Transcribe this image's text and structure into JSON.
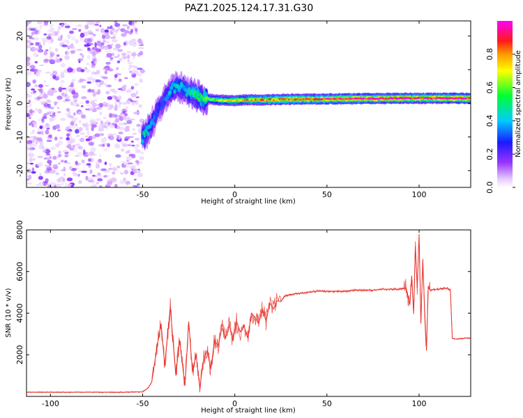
{
  "chart_data": [
    {
      "type": "heatmap",
      "title": "PAZ1.2025.124.17.31.G30",
      "xlabel": "Height of straight line (km)",
      "ylabel": "Frequency (Hz)",
      "xlim": [
        -113,
        128
      ],
      "ylim": [
        -25,
        24.5
      ],
      "xticks": [
        -100,
        -50,
        0,
        50,
        100
      ],
      "yticks": [
        -20,
        -10,
        0,
        10,
        20
      ],
      "colorbar": {
        "label": "Normalized spectral amplitude",
        "range": [
          0,
          1
        ],
        "ticks": [
          "0.0",
          "0.2",
          "0.4",
          "0.6",
          "0.8"
        ],
        "tick_values": [
          0.0,
          0.2,
          0.4,
          0.6,
          0.8
        ],
        "colormap": "rainbow (white → violet → blue → cyan → green → yellow → red → magenta)"
      },
      "noise_region": {
        "x": [
          -113,
          -50
        ],
        "frequency": [
          -25,
          24.5
        ],
        "amplitude": [
          0.0,
          0.25
        ]
      },
      "ridge": [
        {
          "x": -50,
          "f": -10.5,
          "a": 0.45
        },
        {
          "x": -47,
          "f": -8,
          "a": 0.4
        },
        {
          "x": -44,
          "f": -5,
          "a": 0.35
        },
        {
          "x": -41,
          "f": -1,
          "a": 0.3
        },
        {
          "x": -38,
          "f": 1,
          "a": 0.35
        },
        {
          "x": -35,
          "f": 4,
          "a": 0.4
        },
        {
          "x": -31,
          "f": 5,
          "a": 0.45
        },
        {
          "x": -27,
          "f": 4,
          "a": 0.4
        },
        {
          "x": -22,
          "f": 2.5,
          "a": 0.5
        },
        {
          "x": -17,
          "f": 1.5,
          "a": 0.55
        },
        {
          "x": -10,
          "f": 1,
          "a": 0.65
        },
        {
          "x": -3,
          "f": 0.8,
          "a": 0.7
        },
        {
          "x": 5,
          "f": 1,
          "a": 0.75
        },
        {
          "x": 15,
          "f": 1,
          "a": 0.8
        },
        {
          "x": 30,
          "f": 1.2,
          "a": 0.85
        },
        {
          "x": 50,
          "f": 1.3,
          "a": 0.9
        },
        {
          "x": 70,
          "f": 1.4,
          "a": 0.92
        },
        {
          "x": 90,
          "f": 1.5,
          "a": 0.95
        },
        {
          "x": 100,
          "f": 1.5,
          "a": 0.9
        },
        {
          "x": 110,
          "f": 1.5,
          "a": 0.95
        },
        {
          "x": 128,
          "f": 1.5,
          "a": 0.95
        }
      ]
    },
    {
      "type": "line",
      "xlabel": "Height of straight line (km)",
      "ylabel": "SNR (10 * v/v)",
      "xlim": [
        -113,
        128
      ],
      "ylim": [
        0,
        8000
      ],
      "xticks": [
        -100,
        -50,
        0,
        50,
        100
      ],
      "yticks": [
        2000,
        4000,
        6000,
        8000
      ],
      "color": "#e8312a",
      "x": [
        -113,
        -60,
        -50,
        -47,
        -45,
        -42,
        -40,
        -38,
        -35,
        -32,
        -30,
        -27,
        -25,
        -23,
        -21,
        -19,
        -17,
        -15,
        -13,
        -11,
        -9,
        -7,
        -5,
        -3,
        -1,
        1,
        3,
        5,
        7,
        9,
        11,
        13,
        15,
        17,
        19,
        21,
        23,
        25,
        27,
        30,
        35,
        40,
        45,
        50,
        55,
        60,
        65,
        70,
        75,
        80,
        85,
        90,
        93,
        95,
        96,
        97,
        98,
        99,
        100,
        101,
        102,
        103,
        104,
        105,
        106,
        110,
        115,
        117,
        118,
        120,
        125,
        128
      ],
      "y": [
        200,
        200,
        220,
        400,
        700,
        2500,
        3500,
        1500,
        4300,
        1000,
        2700,
        500,
        3600,
        1200,
        2000,
        400,
        1700,
        2200,
        1300,
        2700,
        2400,
        3300,
        2800,
        3400,
        2700,
        3600,
        3100,
        3400,
        2800,
        4000,
        3800,
        3500,
        4200,
        3600,
        4500,
        4200,
        4600,
        4550,
        4800,
        4900,
        4950,
        5000,
        5050,
        5050,
        5050,
        5050,
        5100,
        5100,
        5100,
        5150,
        5150,
        5150,
        5200,
        4400,
        5800,
        4000,
        7200,
        5200,
        7800,
        3500,
        6600,
        4200,
        2200,
        5300,
        5100,
        5150,
        5200,
        5100,
        2800,
        2750,
        2800,
        2800
      ],
      "annotations": [
        {
          "x": 100,
          "y": 8000
        },
        {
          "x": 102.5,
          "y": 1300
        }
      ]
    }
  ]
}
